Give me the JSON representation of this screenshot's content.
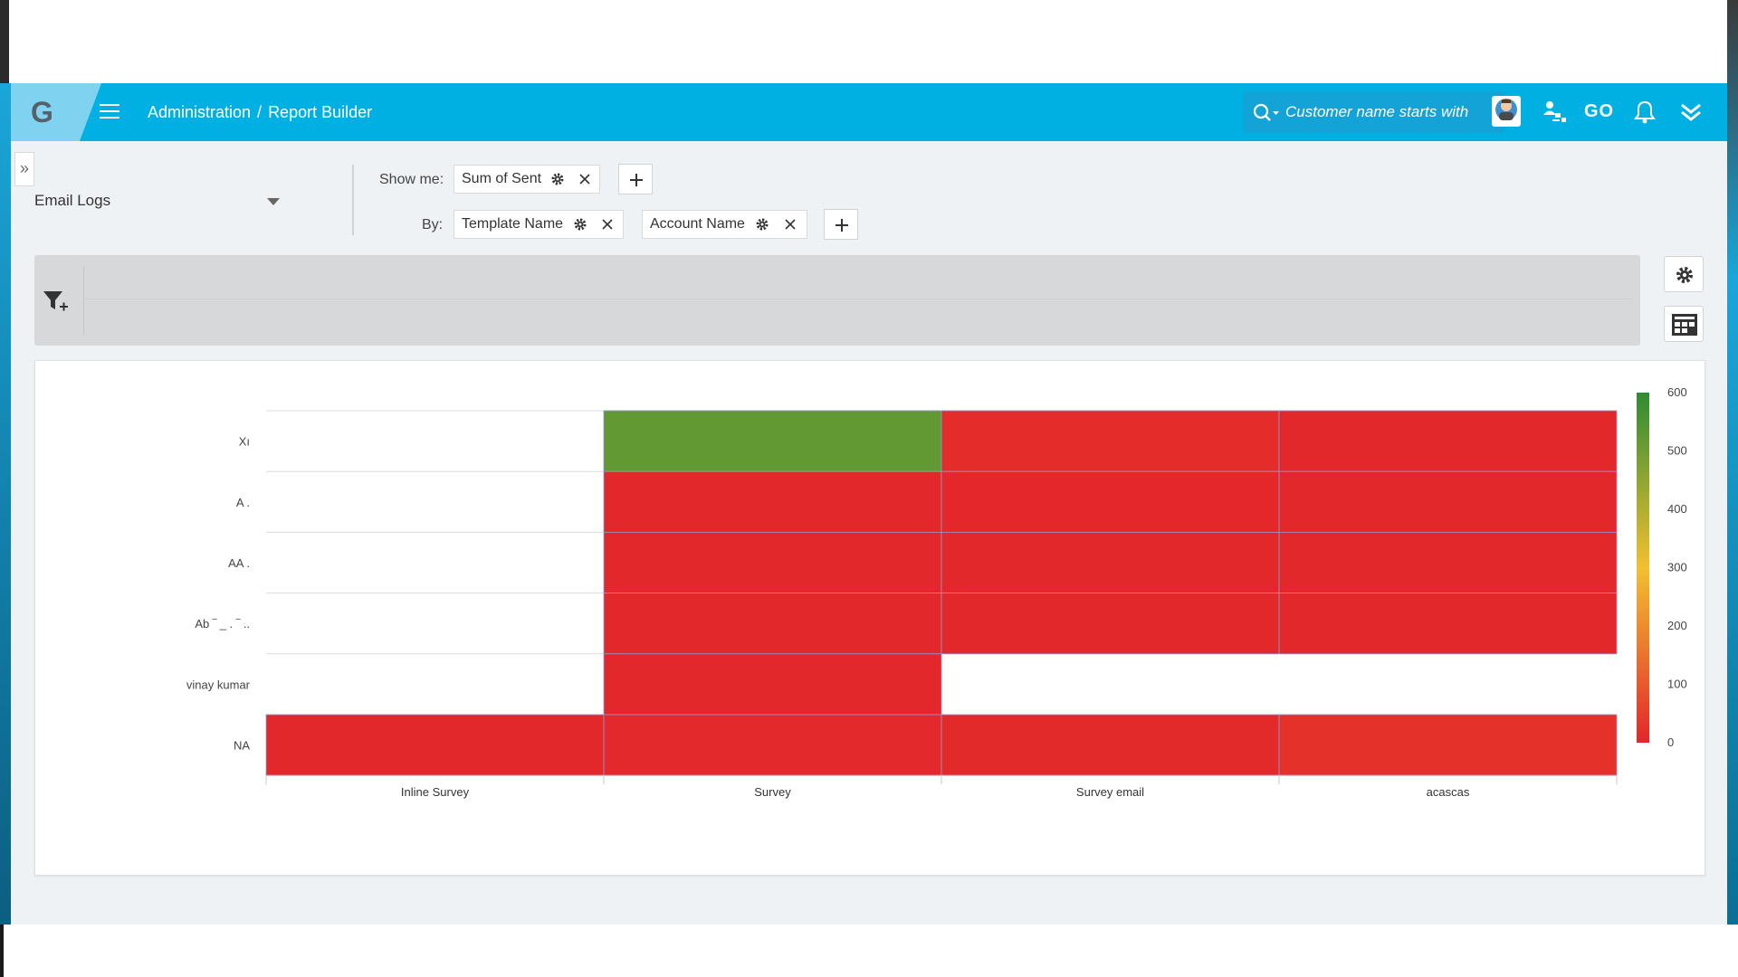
{
  "app": {
    "logo_letter": "G"
  },
  "header": {
    "breadcrumb": [
      "Administration",
      "Report Builder"
    ],
    "breadcrumb_separator": "/",
    "search_placeholder": "Customer name starts with",
    "go_label": "GO",
    "accent_color": "#00b0e3"
  },
  "report": {
    "source": "Email Logs",
    "show_me_label": "Show me:",
    "by_label": "By:",
    "measures": [
      {
        "label": "Sum of Sent"
      }
    ],
    "dimensions": [
      {
        "label": "Template Name"
      },
      {
        "label": "Account Name"
      }
    ]
  },
  "icons": [
    "hamburger-icon",
    "search-icon",
    "avatar",
    "org-chart-icon",
    "bell-icon",
    "double-chevron-down-icon",
    "gear-icon",
    "close-icon",
    "plus-icon",
    "filter-add-icon",
    "dashboard-grid-icon"
  ],
  "chart_data": {
    "type": "heatmap",
    "title": "",
    "x_categories": [
      "Inline Survey",
      "Survey",
      "Survey email",
      "acascas"
    ],
    "y_categories": [
      "Xı",
      "A    .",
      "AA    .",
      "Ab    ‾  _  .  ‾  ..",
      "vinay kumar",
      "NA"
    ],
    "values": [
      [
        null,
        520,
        12,
        4
      ],
      [
        null,
        3,
        2,
        3
      ],
      [
        null,
        3,
        3,
        3
      ],
      [
        null,
        3,
        4,
        3
      ],
      [
        null,
        4,
        null,
        null
      ],
      [
        3,
        5,
        8,
        24
      ]
    ],
    "colorbar": {
      "min": 0,
      "max": 600,
      "ticks": [
        0,
        100,
        200,
        300,
        400,
        500,
        600
      ],
      "low_color": "#e3262b",
      "mid_color": "#f2c030",
      "high_color": "#2e8b33"
    },
    "grid": true,
    "legend_position": "right"
  }
}
